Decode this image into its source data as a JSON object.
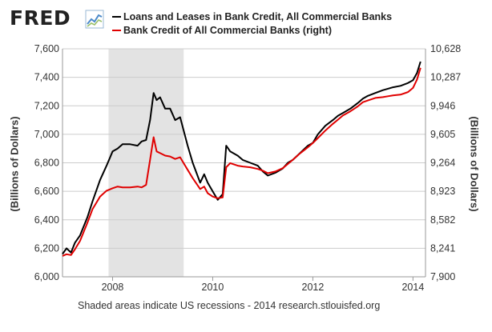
{
  "header": {
    "logo_text": "FRED",
    "logo_icon": "fred-chart-icon"
  },
  "footnote": "Shaded areas indicate US recessions - 2014 research.stlouisfed.org",
  "colors": {
    "series_left": "#000000",
    "series_right": "#e00000",
    "recession": "#e3e3e3",
    "grid": "#cccccc"
  },
  "chart_data": {
    "type": "line",
    "xlabel": "",
    "ylabel": "(Billions of Dollars)",
    "ylabel_right": "(Billions of Dollars)",
    "xlim": [
      2007.0,
      2014.25
    ],
    "xticks": [
      2008,
      2010,
      2012,
      2014
    ],
    "xtick_labels": [
      "2008",
      "2010",
      "2012",
      "2014"
    ],
    "ylim": [
      6000,
      7600
    ],
    "yticks": [
      6000,
      6200,
      6400,
      6600,
      6800,
      7000,
      7200,
      7400,
      7600
    ],
    "ytick_labels": [
      "6,000",
      "6,200",
      "6,400",
      "6,600",
      "6,800",
      "7,000",
      "7,200",
      "7,400",
      "7,600"
    ],
    "ylim_right": [
      7900,
      10628
    ],
    "yticks_right": [
      7900,
      8241,
      8582,
      8923,
      9264,
      9605,
      9946,
      10287,
      10628
    ],
    "ytick_labels_right": [
      "7,900",
      "8,241",
      "8,582",
      "8,923",
      "9,264",
      "9,605",
      "9,946",
      "10,287",
      "10,628"
    ],
    "grid": true,
    "legend_position": "top",
    "recessions": [
      [
        2007.92,
        2009.42
      ]
    ],
    "series": [
      {
        "name": "Loans and Leases in Bank Credit, All Commercial Banks",
        "axis": "left",
        "color": "#000000",
        "x": [
          2007.0,
          2007.08,
          2007.17,
          2007.25,
          2007.35,
          2007.5,
          2007.6,
          2007.75,
          2007.88,
          2008.0,
          2008.1,
          2008.2,
          2008.35,
          2008.5,
          2008.58,
          2008.67,
          2008.75,
          2008.82,
          2008.88,
          2008.95,
          2009.05,
          2009.15,
          2009.25,
          2009.35,
          2009.5,
          2009.6,
          2009.75,
          2009.83,
          2009.9,
          2010.0,
          2010.1,
          2010.2,
          2010.27,
          2010.35,
          2010.5,
          2010.6,
          2010.75,
          2010.9,
          2011.0,
          2011.1,
          2011.25,
          2011.4,
          2011.5,
          2011.6,
          2011.75,
          2011.9,
          2012.0,
          2012.1,
          2012.25,
          2012.4,
          2012.5,
          2012.6,
          2012.75,
          2012.9,
          2013.0,
          2013.1,
          2013.25,
          2013.4,
          2013.5,
          2013.6,
          2013.75,
          2013.9,
          2014.0,
          2014.08,
          2014.15
        ],
        "values": [
          6160,
          6200,
          6170,
          6240,
          6290,
          6420,
          6530,
          6680,
          6780,
          6880,
          6900,
          6930,
          6930,
          6920,
          6950,
          6960,
          7100,
          7290,
          7240,
          7260,
          7180,
          7180,
          7100,
          7120,
          6920,
          6800,
          6660,
          6720,
          6660,
          6600,
          6540,
          6580,
          6920,
          6880,
          6850,
          6820,
          6800,
          6780,
          6740,
          6710,
          6730,
          6760,
          6800,
          6820,
          6870,
          6920,
          6940,
          7000,
          7060,
          7100,
          7130,
          7150,
          7180,
          7220,
          7250,
          7270,
          7290,
          7310,
          7320,
          7330,
          7340,
          7360,
          7380,
          7430,
          7510
        ]
      },
      {
        "name": "Bank Credit of All Commercial Banks (right)",
        "axis": "right",
        "color": "#e00000",
        "x": [
          2007.0,
          2007.08,
          2007.17,
          2007.25,
          2007.35,
          2007.5,
          2007.6,
          2007.75,
          2007.88,
          2008.0,
          2008.1,
          2008.2,
          2008.35,
          2008.5,
          2008.58,
          2008.67,
          2008.75,
          2008.82,
          2008.88,
          2008.95,
          2009.05,
          2009.15,
          2009.25,
          2009.35,
          2009.5,
          2009.6,
          2009.75,
          2009.83,
          2009.9,
          2010.0,
          2010.1,
          2010.2,
          2010.27,
          2010.35,
          2010.5,
          2010.6,
          2010.75,
          2010.9,
          2011.0,
          2011.1,
          2011.25,
          2011.4,
          2011.5,
          2011.6,
          2011.75,
          2011.9,
          2012.0,
          2012.1,
          2012.25,
          2012.4,
          2012.5,
          2012.6,
          2012.75,
          2012.9,
          2013.0,
          2013.1,
          2013.25,
          2013.4,
          2013.5,
          2013.6,
          2013.75,
          2013.9,
          2014.0,
          2014.08,
          2014.15
        ],
        "values": [
          8150,
          8170,
          8160,
          8230,
          8330,
          8550,
          8710,
          8860,
          8930,
          8960,
          8980,
          8970,
          8970,
          8980,
          8970,
          9000,
          9300,
          9570,
          9400,
          9380,
          9350,
          9340,
          9310,
          9330,
          9180,
          9080,
          8950,
          8980,
          8900,
          8860,
          8840,
          8850,
          9210,
          9260,
          9230,
          9220,
          9210,
          9190,
          9170,
          9140,
          9160,
          9200,
          9250,
          9300,
          9380,
          9450,
          9500,
          9560,
          9650,
          9730,
          9780,
          9830,
          9880,
          9940,
          9990,
          10010,
          10040,
          10050,
          10060,
          10070,
          10080,
          10110,
          10160,
          10260,
          10400
        ]
      }
    ]
  }
}
